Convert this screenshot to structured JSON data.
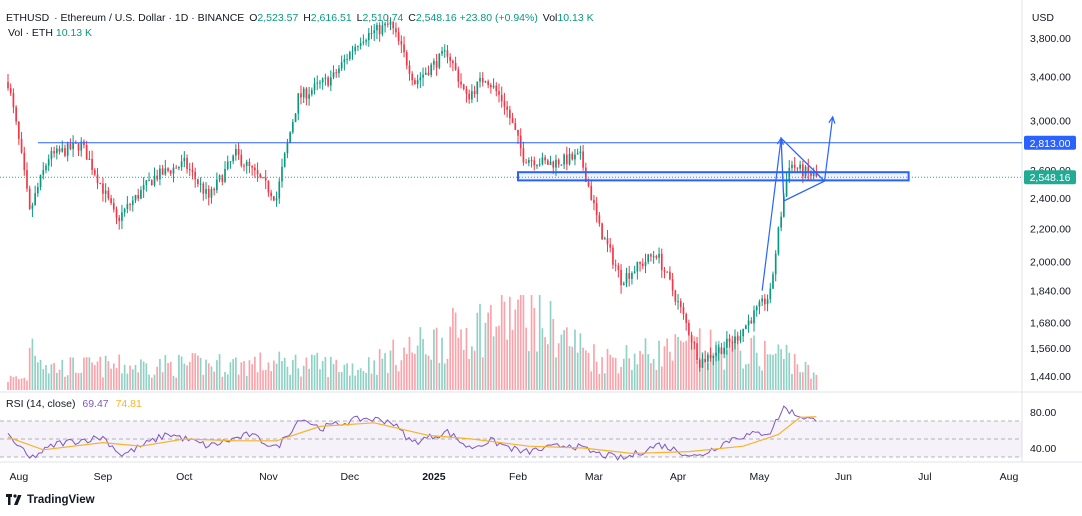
{
  "header": {
    "symbol": "ETHUSD",
    "description": "· Ethereum / U.S. Dollar · 1D · BINANCE",
    "ohlc": [
      {
        "label": "O",
        "value": "2,523.57"
      },
      {
        "label": "H",
        "value": "2,616.51"
      },
      {
        "label": "L",
        "value": "2,510.74"
      },
      {
        "label": "C",
        "value": "2,548.16"
      }
    ],
    "change": "+23.80 (+0.94%)",
    "vol_label": "Vol",
    "vol_value": "10.13 K",
    "vol_row_label": "Vol · ETH",
    "vol_row_value": "10.13 K"
  },
  "currency": "USD",
  "rsi_header": {
    "label": "RSI (14, close)",
    "value": "69.47",
    "ma_value": "74.81"
  },
  "brand": "TradingView",
  "colors": {
    "up": "#089981",
    "down": "#f23645",
    "level": "#2962ff",
    "rsi": "#7e57c2",
    "rsi_ma": "#f7b32b",
    "price_dotted": "#22ab94"
  },
  "chart_data": {
    "type": "candlestick",
    "symbol": "ETHUSD",
    "interval": "1D",
    "exchange": "BINANCE",
    "price_axis": {
      "ticks": [
        "3,800.00",
        "3,400.00",
        "3,000.00",
        "2,600.00",
        "2,400.00",
        "2,200.00",
        "2,000.00",
        "1,840.00",
        "1,680.00",
        "1,560.00",
        "1,440.00"
      ],
      "scale": "log"
    },
    "time_axis": {
      "ticks": [
        "Aug",
        "Sep",
        "Oct",
        "Nov",
        "Dec",
        "2025",
        "Feb",
        "Mar",
        "Apr",
        "May",
        "Jun",
        "Jul",
        "Aug"
      ]
    },
    "price_labels": [
      {
        "value": "2,813.00",
        "style": "level"
      },
      {
        "value": "2,548.16",
        "style": "last"
      }
    ],
    "price_path": [
      [
        "2024-07-28",
        3350
      ],
      [
        "2024-08-05",
        2300
      ],
      [
        "2024-08-12",
        2700
      ],
      [
        "2024-08-24",
        2800
      ],
      [
        "2024-09-06",
        2250
      ],
      [
        "2024-09-20",
        2550
      ],
      [
        "2024-10-01",
        2650
      ],
      [
        "2024-10-10",
        2400
      ],
      [
        "2024-10-20",
        2720
      ],
      [
        "2024-11-04",
        2400
      ],
      [
        "2024-11-12",
        3200
      ],
      [
        "2024-11-25",
        3400
      ],
      [
        "2024-12-05",
        3800
      ],
      [
        "2024-12-16",
        3950
      ],
      [
        "2024-12-25",
        3350
      ],
      [
        "2025-01-06",
        3650
      ],
      [
        "2025-01-13",
        3200
      ],
      [
        "2025-01-20",
        3400
      ],
      [
        "2025-01-27",
        3150
      ],
      [
        "2025-02-03",
        2700
      ],
      [
        "2025-02-12",
        2650
      ],
      [
        "2025-02-24",
        2700
      ],
      [
        "2025-03-03",
        2200
      ],
      [
        "2025-03-11",
        1900
      ],
      [
        "2025-03-24",
        2050
      ],
      [
        "2025-04-09",
        1500
      ],
      [
        "2025-04-22",
        1600
      ],
      [
        "2025-05-05",
        1820
      ],
      [
        "2025-05-12",
        2650
      ],
      [
        "2025-05-16",
        2600
      ],
      [
        "2025-05-22",
        2548
      ]
    ],
    "volume_path": [
      [
        "2024-08-05",
        0.28
      ],
      [
        "2024-08-12",
        0.12
      ],
      [
        "2024-11-12",
        0.14
      ],
      [
        "2024-12-05",
        0.12
      ],
      [
        "2025-02-03",
        0.42
      ],
      [
        "2025-03-03",
        0.16
      ],
      [
        "2025-04-09",
        0.22
      ],
      [
        "2025-05-12",
        0.18
      ],
      [
        "2025-05-22",
        0.06
      ]
    ],
    "rsi_axis": {
      "ticks": [
        "80.00",
        "40.00"
      ],
      "bands": [
        30,
        50,
        70
      ]
    },
    "rsi": [
      [
        "2024-07-28",
        55
      ],
      [
        "2024-08-05",
        28
      ],
      [
        "2024-08-15",
        45
      ],
      [
        "2024-09-01",
        52
      ],
      [
        "2024-09-08",
        32
      ],
      [
        "2024-09-25",
        56
      ],
      [
        "2024-10-10",
        42
      ],
      [
        "2024-10-25",
        55
      ],
      [
        "2024-11-04",
        40
      ],
      [
        "2024-11-13",
        74
      ],
      [
        "2024-11-20",
        62
      ],
      [
        "2024-12-06",
        73
      ],
      [
        "2024-12-16",
        70
      ],
      [
        "2024-12-24",
        46
      ],
      [
        "2025-01-06",
        58
      ],
      [
        "2025-01-14",
        40
      ],
      [
        "2025-01-22",
        48
      ],
      [
        "2025-02-03",
        35
      ],
      [
        "2025-02-20",
        44
      ],
      [
        "2025-03-03",
        33
      ],
      [
        "2025-03-12",
        28
      ],
      [
        "2025-03-25",
        44
      ],
      [
        "2025-04-08",
        30
      ],
      [
        "2025-04-22",
        52
      ],
      [
        "2025-05-05",
        58
      ],
      [
        "2025-05-10",
        85
      ],
      [
        "2025-05-14",
        78
      ],
      [
        "2025-05-22",
        69.47
      ]
    ],
    "rsi_ma": [
      [
        "2024-07-28",
        52
      ],
      [
        "2024-08-10",
        38
      ],
      [
        "2024-09-01",
        46
      ],
      [
        "2024-09-15",
        42
      ],
      [
        "2024-10-01",
        50
      ],
      [
        "2024-10-20",
        48
      ],
      [
        "2024-11-04",
        48
      ],
      [
        "2024-11-20",
        64
      ],
      [
        "2024-12-10",
        68
      ],
      [
        "2024-12-30",
        54
      ],
      [
        "2025-01-15",
        50
      ],
      [
        "2025-02-05",
        42
      ],
      [
        "2025-02-25",
        40
      ],
      [
        "2025-03-15",
        34
      ],
      [
        "2025-04-05",
        36
      ],
      [
        "2025-04-25",
        42
      ],
      [
        "2025-05-08",
        55
      ],
      [
        "2025-05-16",
        74
      ],
      [
        "2025-05-22",
        74.81
      ]
    ],
    "annotations": [
      {
        "type": "horizontal_line",
        "price": 2813
      },
      {
        "type": "rectangle",
        "from": "2025-02-01",
        "to": "2025-06-25",
        "price_low": 2525,
        "price_high": 2585
      },
      {
        "type": "triangle",
        "points": [
          [
            "2025-05-09",
            2850
          ],
          [
            "2025-05-25",
            2520
          ],
          [
            "2025-05-10",
            2380
          ]
        ]
      },
      {
        "type": "arrow",
        "from": [
          "2025-05-02",
          1840
        ],
        "to": [
          "2025-05-09",
          2850
        ]
      },
      {
        "type": "arrow",
        "from": [
          "2025-05-25",
          2520
        ],
        "to": [
          "2025-05-28",
          3030
        ]
      }
    ]
  }
}
